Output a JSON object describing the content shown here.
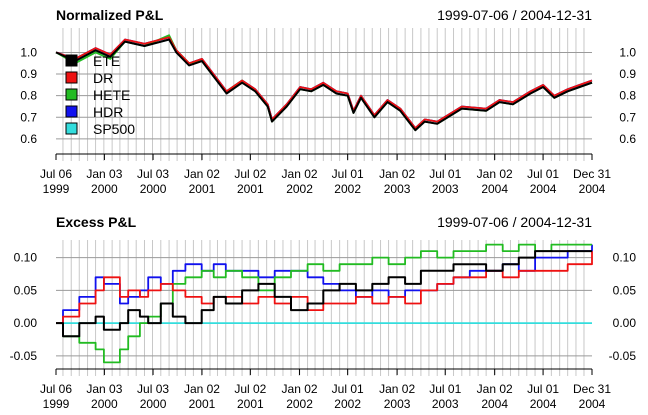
{
  "chart_data": [
    {
      "type": "line",
      "title": "Normalized P&L",
      "range_label": "1999-07-06 / 2004-12-31",
      "x_start": "1999-07-06",
      "x_end": "2004-12-31",
      "ylim": [
        0.53,
        1.09
      ],
      "y_ticks": [
        0.6,
        0.7,
        0.8,
        0.9,
        1.0
      ],
      "y_tick_labels": [
        "0.6",
        "0.7",
        "0.8",
        "0.9",
        "1.0"
      ],
      "grid": true,
      "legend_position": "left",
      "series": [
        {
          "name": "ETE",
          "color": "#000000",
          "x": [
            "1999-07-06",
            "1999-09-15",
            "1999-12-01",
            "2000-01-25",
            "2000-03-20",
            "2000-06-01",
            "2000-09-01",
            "2000-09-28",
            "2000-11-15",
            "2001-01-02",
            "2001-02-20",
            "2001-04-04",
            "2001-06-01",
            "2001-07-20",
            "2001-09-05",
            "2001-09-21",
            "2001-11-15",
            "2002-01-04",
            "2002-02-15",
            "2002-04-01",
            "2002-05-20",
            "2002-07-01",
            "2002-07-23",
            "2002-08-20",
            "2002-10-09",
            "2002-11-27",
            "2003-01-14",
            "2003-03-11",
            "2003-04-15",
            "2003-06-01",
            "2003-09-01",
            "2003-12-01",
            "2004-01-20",
            "2004-03-10",
            "2004-05-15",
            "2004-07-01",
            "2004-08-12",
            "2004-10-01",
            "2004-11-15",
            "2004-12-31"
          ],
          "y": [
            1.0,
            0.96,
            1.01,
            0.98,
            1.05,
            1.03,
            1.06,
            1.0,
            0.94,
            0.96,
            0.88,
            0.81,
            0.86,
            0.82,
            0.75,
            0.68,
            0.75,
            0.83,
            0.82,
            0.85,
            0.81,
            0.8,
            0.72,
            0.79,
            0.7,
            0.77,
            0.73,
            0.64,
            0.68,
            0.67,
            0.74,
            0.73,
            0.77,
            0.76,
            0.81,
            0.84,
            0.79,
            0.82,
            0.84,
            0.86
          ]
        },
        {
          "name": "DR",
          "color": "#ee1111",
          "x": [
            "1999-07-06",
            "1999-09-15",
            "1999-12-01",
            "2000-01-25",
            "2000-03-20",
            "2000-06-01",
            "2000-09-01",
            "2000-09-28",
            "2000-11-15",
            "2001-01-02",
            "2001-02-20",
            "2001-04-04",
            "2001-06-01",
            "2001-07-20",
            "2001-09-05",
            "2001-09-21",
            "2001-11-15",
            "2002-01-04",
            "2002-02-15",
            "2002-04-01",
            "2002-05-20",
            "2002-07-01",
            "2002-07-23",
            "2002-08-20",
            "2002-10-09",
            "2002-11-27",
            "2003-01-14",
            "2003-03-11",
            "2003-04-15",
            "2003-06-01",
            "2003-09-01",
            "2003-12-01",
            "2004-01-20",
            "2004-03-10",
            "2004-05-15",
            "2004-07-01",
            "2004-08-12",
            "2004-10-01",
            "2004-11-15",
            "2004-12-31"
          ],
          "y": [
            1.0,
            0.97,
            1.02,
            0.99,
            1.06,
            1.04,
            1.07,
            1.01,
            0.95,
            0.97,
            0.89,
            0.82,
            0.87,
            0.83,
            0.76,
            0.69,
            0.76,
            0.84,
            0.83,
            0.86,
            0.82,
            0.81,
            0.73,
            0.8,
            0.71,
            0.78,
            0.74,
            0.65,
            0.69,
            0.68,
            0.75,
            0.74,
            0.78,
            0.77,
            0.82,
            0.85,
            0.8,
            0.83,
            0.85,
            0.87
          ]
        },
        {
          "name": "HETE",
          "color": "#22bb22",
          "x": [
            "1999-07-06",
            "1999-09-15",
            "1999-12-01",
            "2000-01-25",
            "2000-03-20",
            "2000-06-01",
            "2000-09-01",
            "2000-09-28",
            "2000-11-15",
            "2001-01-02",
            "2001-02-20",
            "2001-04-04",
            "2001-06-01",
            "2001-07-20",
            "2001-09-05",
            "2001-09-21",
            "2001-11-15",
            "2002-01-04",
            "2002-02-15",
            "2002-04-01",
            "2002-05-20",
            "2002-07-01",
            "2002-07-23",
            "2002-08-20",
            "2002-10-09",
            "2002-11-27",
            "2003-01-14",
            "2003-03-11",
            "2003-04-15",
            "2003-06-01",
            "2003-09-01",
            "2003-12-01",
            "2004-01-20",
            "2004-03-10",
            "2004-05-15",
            "2004-07-01",
            "2004-08-12",
            "2004-10-01",
            "2004-11-15",
            "2004-12-31"
          ],
          "y": [
            1.0,
            0.95,
            1.0,
            0.97,
            1.05,
            1.03,
            1.08,
            1.01,
            0.95,
            0.96,
            0.88,
            0.82,
            0.87,
            0.82,
            0.75,
            0.68,
            0.75,
            0.83,
            0.82,
            0.85,
            0.81,
            0.8,
            0.72,
            0.79,
            0.7,
            0.77,
            0.73,
            0.64,
            0.68,
            0.67,
            0.74,
            0.73,
            0.77,
            0.76,
            0.81,
            0.84,
            0.79,
            0.82,
            0.84,
            0.86
          ]
        },
        {
          "name": "HDR",
          "color": "#1111ee",
          "x": [
            "1999-07-06",
            "1999-09-15",
            "1999-12-01",
            "2000-01-25",
            "2000-03-20",
            "2000-06-01",
            "2000-09-01",
            "2000-09-28",
            "2000-11-15",
            "2001-01-02",
            "2001-02-20",
            "2001-04-04",
            "2001-06-01",
            "2001-07-20",
            "2001-09-05",
            "2001-09-21",
            "2001-11-15",
            "2002-01-04",
            "2002-02-15",
            "2002-04-01",
            "2002-05-20",
            "2002-07-01",
            "2002-07-23",
            "2002-08-20",
            "2002-10-09",
            "2002-11-27",
            "2003-01-14",
            "2003-03-11",
            "2003-04-15",
            "2003-06-01",
            "2003-09-01",
            "2003-12-01",
            "2004-01-20",
            "2004-03-10",
            "2004-05-15",
            "2004-07-01",
            "2004-08-12",
            "2004-10-01",
            "2004-11-15",
            "2004-12-31"
          ],
          "y": [
            1.0,
            0.97,
            1.02,
            0.99,
            1.06,
            1.04,
            1.07,
            1.01,
            0.95,
            0.97,
            0.89,
            0.82,
            0.87,
            0.83,
            0.76,
            0.69,
            0.76,
            0.84,
            0.83,
            0.86,
            0.82,
            0.81,
            0.73,
            0.8,
            0.71,
            0.78,
            0.74,
            0.65,
            0.69,
            0.68,
            0.75,
            0.74,
            0.78,
            0.77,
            0.82,
            0.85,
            0.8,
            0.83,
            0.85,
            0.87
          ]
        },
        {
          "name": "SP500",
          "color": "#33dddd",
          "x": [
            "1999-07-06",
            "1999-09-15",
            "1999-12-01",
            "2000-01-25",
            "2000-03-20",
            "2000-06-01",
            "2000-09-01",
            "2000-09-28",
            "2000-11-15",
            "2001-01-02",
            "2001-02-20",
            "2001-04-04",
            "2001-06-01",
            "2001-07-20",
            "2001-09-05",
            "2001-09-21",
            "2001-11-15",
            "2002-01-04",
            "2002-02-15",
            "2002-04-01",
            "2002-05-20",
            "2002-07-01",
            "2002-07-23",
            "2002-08-20",
            "2002-10-09",
            "2002-11-27",
            "2003-01-14",
            "2003-03-11",
            "2003-04-15",
            "2003-06-01",
            "2003-09-01",
            "2003-12-01",
            "2004-01-20",
            "2004-03-10",
            "2004-05-15",
            "2004-07-01",
            "2004-08-12",
            "2004-10-01",
            "2004-11-15",
            "2004-12-31"
          ],
          "y": [
            1.0,
            0.96,
            1.01,
            0.98,
            1.05,
            1.03,
            1.06,
            1.01,
            0.95,
            0.97,
            0.89,
            0.82,
            0.87,
            0.83,
            0.76,
            0.69,
            0.76,
            0.84,
            0.83,
            0.86,
            0.82,
            0.81,
            0.73,
            0.8,
            0.71,
            0.78,
            0.74,
            0.65,
            0.69,
            0.68,
            0.75,
            0.74,
            0.78,
            0.77,
            0.82,
            0.85,
            0.8,
            0.83,
            0.85,
            0.86
          ]
        }
      ]
    },
    {
      "type": "line",
      "title": "Excess P&L",
      "range_label": "1999-07-06 / 2004-12-31",
      "x_start": "1999-07-06",
      "x_end": "2004-12-31",
      "ylim": [
        -0.07,
        0.13
      ],
      "y_ticks": [
        -0.05,
        0.0,
        0.05,
        0.1
      ],
      "y_tick_labels": [
        "-0.05",
        "0.00",
        "0.05",
        "0.10"
      ],
      "grid": true,
      "step": true,
      "series": [
        {
          "name": "ETE",
          "color": "#000000",
          "x": [
            "1999-07-06",
            "1999-08-01",
            "1999-10-01",
            "1999-12-01",
            "2000-01-01",
            "2000-03-01",
            "2000-04-01",
            "2000-05-15",
            "2000-06-15",
            "2000-08-01",
            "2000-09-15",
            "2000-11-01",
            "2001-01-01",
            "2001-02-15",
            "2001-04-01",
            "2001-06-01",
            "2001-08-01",
            "2001-10-01",
            "2001-12-01",
            "2002-02-01",
            "2002-04-01",
            "2002-06-01",
            "2002-08-01",
            "2002-10-01",
            "2002-12-01",
            "2003-02-01",
            "2003-04-01",
            "2003-06-01",
            "2003-08-01",
            "2003-10-01",
            "2003-12-01",
            "2004-02-01",
            "2004-04-01",
            "2004-06-01",
            "2004-08-01",
            "2004-10-01",
            "2004-12-31"
          ],
          "y": [
            0.0,
            -0.02,
            0.0,
            0.01,
            -0.01,
            0.0,
            0.02,
            0.01,
            0.0,
            0.03,
            0.01,
            0.0,
            0.02,
            0.04,
            0.03,
            0.05,
            0.06,
            0.04,
            0.02,
            0.03,
            0.05,
            0.06,
            0.05,
            0.06,
            0.07,
            0.06,
            0.08,
            0.08,
            0.09,
            0.09,
            0.08,
            0.09,
            0.1,
            0.11,
            0.11,
            0.11,
            0.11
          ]
        },
        {
          "name": "DR",
          "color": "#ee1111",
          "x": [
            "1999-07-06",
            "1999-08-01",
            "1999-10-01",
            "1999-12-01",
            "2000-01-01",
            "2000-03-01",
            "2000-04-01",
            "2000-05-15",
            "2000-06-15",
            "2000-08-01",
            "2000-09-15",
            "2000-11-01",
            "2001-01-01",
            "2001-02-15",
            "2001-04-01",
            "2001-06-01",
            "2001-08-01",
            "2001-10-01",
            "2001-12-01",
            "2002-02-01",
            "2002-04-01",
            "2002-06-01",
            "2002-08-01",
            "2002-10-01",
            "2002-12-01",
            "2003-02-01",
            "2003-04-01",
            "2003-06-01",
            "2003-08-01",
            "2003-10-01",
            "2003-12-01",
            "2004-02-01",
            "2004-04-01",
            "2004-06-01",
            "2004-08-01",
            "2004-10-01",
            "2004-12-31"
          ],
          "y": [
            0.0,
            0.01,
            0.03,
            0.05,
            0.07,
            0.04,
            0.05,
            0.04,
            0.05,
            0.06,
            0.05,
            0.04,
            0.03,
            0.04,
            0.04,
            0.03,
            0.04,
            0.03,
            0.04,
            0.02,
            0.03,
            0.03,
            0.04,
            0.03,
            0.04,
            0.03,
            0.05,
            0.06,
            0.07,
            0.07,
            0.08,
            0.07,
            0.08,
            0.08,
            0.08,
            0.09,
            0.11
          ]
        },
        {
          "name": "HETE",
          "color": "#22bb22",
          "x": [
            "1999-07-06",
            "1999-08-01",
            "1999-10-01",
            "1999-12-01",
            "2000-01-01",
            "2000-03-01",
            "2000-04-01",
            "2000-05-15",
            "2000-06-15",
            "2000-08-01",
            "2000-09-15",
            "2000-11-01",
            "2001-01-01",
            "2001-02-15",
            "2001-04-01",
            "2001-06-01",
            "2001-08-01",
            "2001-10-01",
            "2001-12-01",
            "2002-02-01",
            "2002-04-01",
            "2002-06-01",
            "2002-08-01",
            "2002-10-01",
            "2002-12-01",
            "2003-02-01",
            "2003-04-01",
            "2003-06-01",
            "2003-08-01",
            "2003-10-01",
            "2003-12-01",
            "2004-02-01",
            "2004-04-01",
            "2004-06-01",
            "2004-08-01",
            "2004-10-01",
            "2004-12-31"
          ],
          "y": [
            0.0,
            -0.02,
            -0.03,
            -0.04,
            -0.06,
            -0.04,
            -0.02,
            0.0,
            0.01,
            0.03,
            0.06,
            0.07,
            0.08,
            0.07,
            0.08,
            0.07,
            0.05,
            0.07,
            0.08,
            0.09,
            0.08,
            0.09,
            0.09,
            0.1,
            0.09,
            0.1,
            0.11,
            0.1,
            0.11,
            0.11,
            0.12,
            0.11,
            0.12,
            0.11,
            0.12,
            0.12,
            0.12
          ]
        },
        {
          "name": "HDR",
          "color": "#1111ee",
          "x": [
            "1999-07-06",
            "1999-08-01",
            "1999-10-01",
            "1999-12-01",
            "2000-01-01",
            "2000-03-01",
            "2000-04-01",
            "2000-05-15",
            "2000-06-15",
            "2000-08-01",
            "2000-09-15",
            "2000-11-01",
            "2001-01-01",
            "2001-02-15",
            "2001-04-01",
            "2001-06-01",
            "2001-08-01",
            "2001-10-01",
            "2001-12-01",
            "2002-02-01",
            "2002-04-01",
            "2002-06-01",
            "2002-08-01",
            "2002-10-01",
            "2002-12-01",
            "2003-02-01",
            "2003-04-01",
            "2003-06-01",
            "2003-08-01",
            "2003-10-01",
            "2003-12-01",
            "2004-02-01",
            "2004-04-01",
            "2004-06-01",
            "2004-08-01",
            "2004-10-01",
            "2004-12-31"
          ],
          "y": [
            0.0,
            0.02,
            0.04,
            0.07,
            0.06,
            0.03,
            0.04,
            0.05,
            0.07,
            0.06,
            0.08,
            0.09,
            0.08,
            0.09,
            0.08,
            0.08,
            0.07,
            0.08,
            0.08,
            0.07,
            0.06,
            0.05,
            0.04,
            0.05,
            0.04,
            0.05,
            0.05,
            0.06,
            0.07,
            0.08,
            0.08,
            0.09,
            0.08,
            0.1,
            0.1,
            0.11,
            0.12
          ]
        },
        {
          "name": "SP500",
          "color": "#33dddd",
          "x": [
            "1999-07-06",
            "2004-12-31"
          ],
          "y": [
            0.0,
            0.0
          ]
        }
      ]
    }
  ],
  "x_axis": {
    "tick_labels": [
      {
        "date": "1999-07-06",
        "line1": "Jul 06",
        "line2": "1999"
      },
      {
        "date": "2000-01-03",
        "line1": "Jan 03",
        "line2": "2000"
      },
      {
        "date": "2000-07-03",
        "line1": "Jul 03",
        "line2": "2000"
      },
      {
        "date": "2001-01-02",
        "line1": "Jan 02",
        "line2": "2001"
      },
      {
        "date": "2001-07-02",
        "line1": "Jul 02",
        "line2": "2001"
      },
      {
        "date": "2002-01-02",
        "line1": "Jan 02",
        "line2": "2002"
      },
      {
        "date": "2002-07-01",
        "line1": "Jul 01",
        "line2": "2002"
      },
      {
        "date": "2003-01-02",
        "line1": "Jan 02",
        "line2": "2003"
      },
      {
        "date": "2003-07-01",
        "line1": "Jul 01",
        "line2": "2003"
      },
      {
        "date": "2004-01-02",
        "line1": "Jan 02",
        "line2": "2004"
      },
      {
        "date": "2004-07-01",
        "line1": "Jul 01",
        "line2": "2004"
      },
      {
        "date": "2004-12-31",
        "line1": "Dec 31",
        "line2": "2004"
      }
    ]
  }
}
